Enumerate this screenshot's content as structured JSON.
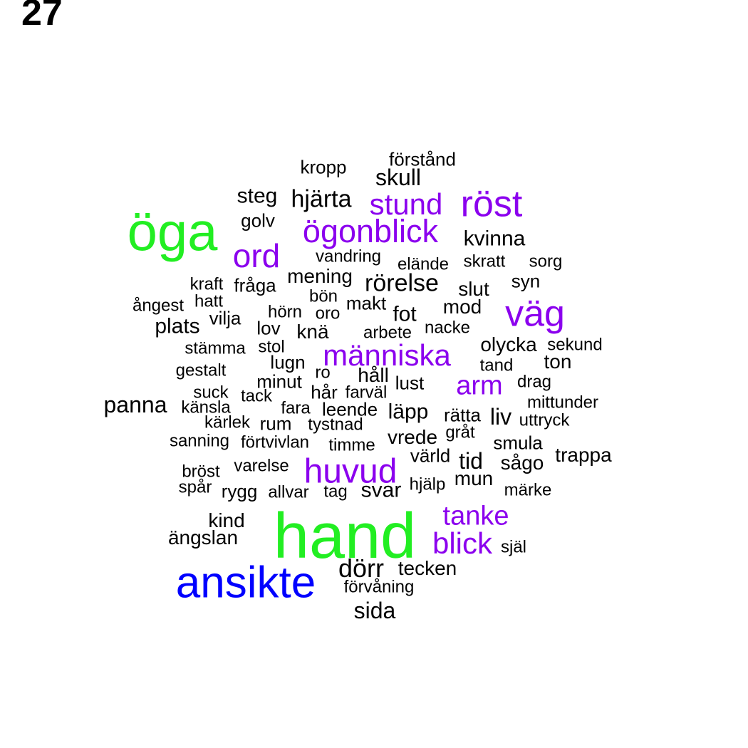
{
  "page_number": "27",
  "colors": {
    "black": "#000000",
    "purple": "#8B00EE",
    "green": "#22EE22",
    "blue": "#0000FF"
  },
  "words": [
    {
      "text": "hand",
      "color": "green"
    },
    {
      "text": "öga",
      "color": "green"
    },
    {
      "text": "ansikte",
      "color": "blue"
    },
    {
      "text": "huvud",
      "color": "purple"
    },
    {
      "text": "väg",
      "color": "purple"
    },
    {
      "text": "röst",
      "color": "purple"
    },
    {
      "text": "ord",
      "color": "purple"
    },
    {
      "text": "ögonblick",
      "color": "purple"
    },
    {
      "text": "människa",
      "color": "purple"
    },
    {
      "text": "stund",
      "color": "purple"
    },
    {
      "text": "blick",
      "color": "purple"
    },
    {
      "text": "tanke",
      "color": "purple"
    },
    {
      "text": "arm",
      "color": "purple"
    },
    {
      "text": "förstånd",
      "color": "black"
    },
    {
      "text": "kropp",
      "color": "black"
    },
    {
      "text": "skull",
      "color": "black"
    },
    {
      "text": "steg",
      "color": "black"
    },
    {
      "text": "hjärta",
      "color": "black"
    },
    {
      "text": "golv",
      "color": "black"
    },
    {
      "text": "kvinna",
      "color": "black"
    },
    {
      "text": "vandring",
      "color": "black"
    },
    {
      "text": "elände",
      "color": "black"
    },
    {
      "text": "skratt",
      "color": "black"
    },
    {
      "text": "sorg",
      "color": "black"
    },
    {
      "text": "kraft",
      "color": "black"
    },
    {
      "text": "fråga",
      "color": "black"
    },
    {
      "text": "mening",
      "color": "black"
    },
    {
      "text": "rörelse",
      "color": "black"
    },
    {
      "text": "slut",
      "color": "black"
    },
    {
      "text": "syn",
      "color": "black"
    },
    {
      "text": "ångest",
      "color": "black"
    },
    {
      "text": "hatt",
      "color": "black"
    },
    {
      "text": "bön",
      "color": "black"
    },
    {
      "text": "makt",
      "color": "black"
    },
    {
      "text": "mod",
      "color": "black"
    },
    {
      "text": "vilja",
      "color": "black"
    },
    {
      "text": "hörn",
      "color": "black"
    },
    {
      "text": "oro",
      "color": "black"
    },
    {
      "text": "fot",
      "color": "black"
    },
    {
      "text": "plats",
      "color": "black"
    },
    {
      "text": "lov",
      "color": "black"
    },
    {
      "text": "knä",
      "color": "black"
    },
    {
      "text": "arbete",
      "color": "black"
    },
    {
      "text": "nacke",
      "color": "black"
    },
    {
      "text": "stämma",
      "color": "black"
    },
    {
      "text": "stol",
      "color": "black"
    },
    {
      "text": "olycka",
      "color": "black"
    },
    {
      "text": "sekund",
      "color": "black"
    },
    {
      "text": "lugn",
      "color": "black"
    },
    {
      "text": "ton",
      "color": "black"
    },
    {
      "text": "gestalt",
      "color": "black"
    },
    {
      "text": "tand",
      "color": "black"
    },
    {
      "text": "ro",
      "color": "black"
    },
    {
      "text": "håll",
      "color": "black"
    },
    {
      "text": "minut",
      "color": "black"
    },
    {
      "text": "lust",
      "color": "black"
    },
    {
      "text": "drag",
      "color": "black"
    },
    {
      "text": "suck",
      "color": "black"
    },
    {
      "text": "hår",
      "color": "black"
    },
    {
      "text": "farväl",
      "color": "black"
    },
    {
      "text": "tack",
      "color": "black"
    },
    {
      "text": "panna",
      "color": "black"
    },
    {
      "text": "mittunder",
      "color": "black"
    },
    {
      "text": "känsla",
      "color": "black"
    },
    {
      "text": "fara",
      "color": "black"
    },
    {
      "text": "leende",
      "color": "black"
    },
    {
      "text": "läpp",
      "color": "black"
    },
    {
      "text": "rätta",
      "color": "black"
    },
    {
      "text": "liv",
      "color": "black"
    },
    {
      "text": "uttryck",
      "color": "black"
    },
    {
      "text": "kärlek",
      "color": "black"
    },
    {
      "text": "rum",
      "color": "black"
    },
    {
      "text": "tystnad",
      "color": "black"
    },
    {
      "text": "gråt",
      "color": "black"
    },
    {
      "text": "sanning",
      "color": "black"
    },
    {
      "text": "förtvivlan",
      "color": "black"
    },
    {
      "text": "vrede",
      "color": "black"
    },
    {
      "text": "smula",
      "color": "black"
    },
    {
      "text": "timme",
      "color": "black"
    },
    {
      "text": "trappa",
      "color": "black"
    },
    {
      "text": "värld",
      "color": "black"
    },
    {
      "text": "tid",
      "color": "black"
    },
    {
      "text": "sågo",
      "color": "black"
    },
    {
      "text": "bröst",
      "color": "black"
    },
    {
      "text": "varelse",
      "color": "black"
    },
    {
      "text": "mun",
      "color": "black"
    },
    {
      "text": "spår",
      "color": "black"
    },
    {
      "text": "hjälp",
      "color": "black"
    },
    {
      "text": "rygg",
      "color": "black"
    },
    {
      "text": "allvar",
      "color": "black"
    },
    {
      "text": "tag",
      "color": "black"
    },
    {
      "text": "svar",
      "color": "black"
    },
    {
      "text": "märke",
      "color": "black"
    },
    {
      "text": "kind",
      "color": "black"
    },
    {
      "text": "ängslan",
      "color": "black"
    },
    {
      "text": "själ",
      "color": "black"
    },
    {
      "text": "dörr",
      "color": "black"
    },
    {
      "text": "tecken",
      "color": "black"
    },
    {
      "text": "förvåning",
      "color": "black"
    },
    {
      "text": "sida",
      "color": "black"
    }
  ]
}
